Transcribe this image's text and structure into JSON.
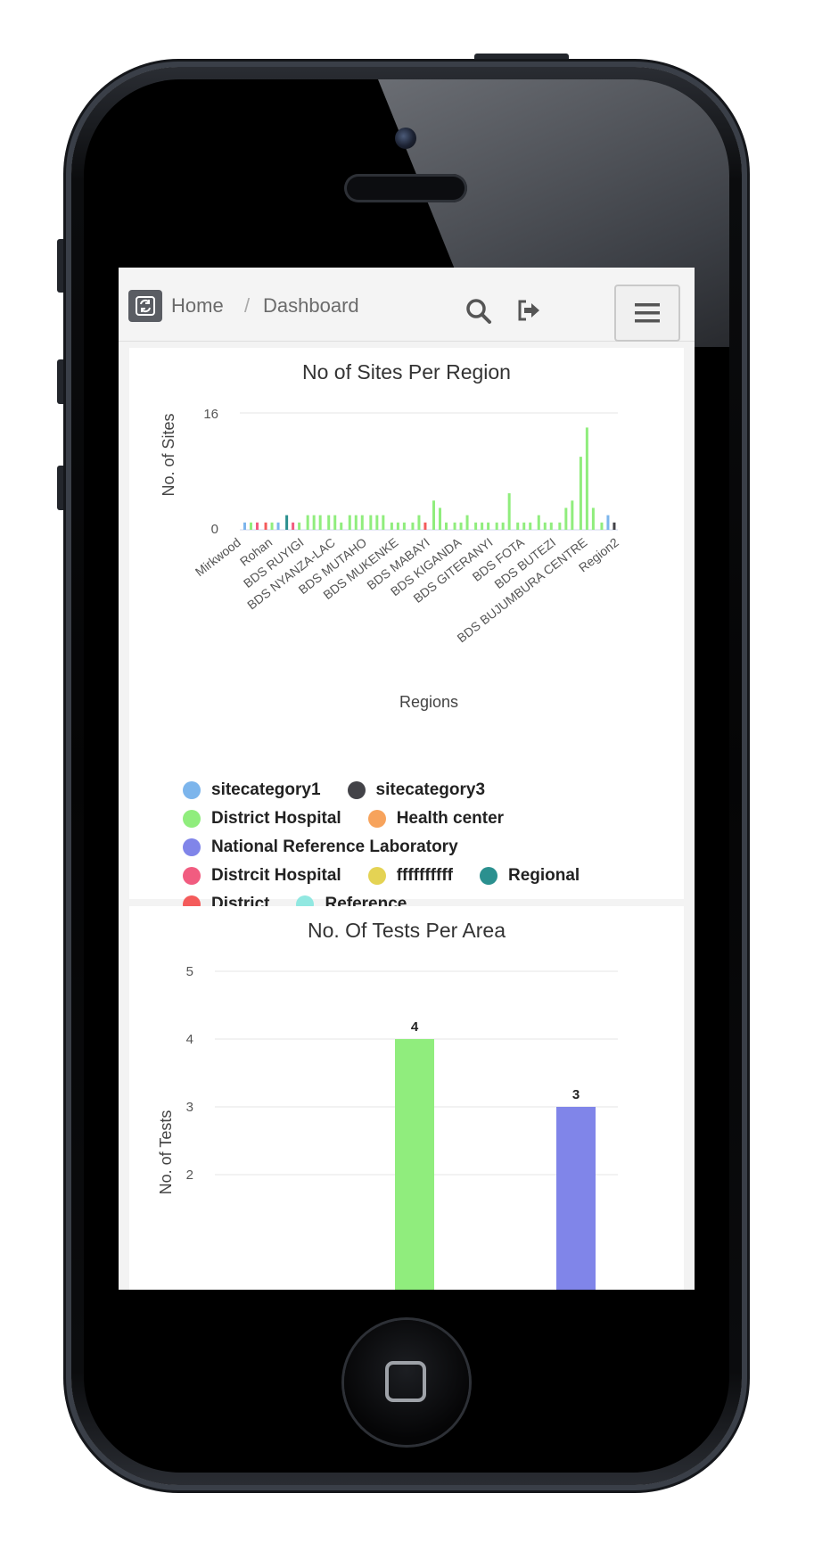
{
  "topbar": {
    "breadcrumb_home": "Home",
    "breadcrumb_sep": "/",
    "breadcrumb_current": "Dashboard"
  },
  "chart1": {
    "title": "No of Sites Per Region",
    "ylabel": "No. of Sites",
    "xlabel": "Regions",
    "y_ticks": [
      "16",
      "0"
    ],
    "x_tick_labels": [
      "Mirkwood",
      "Rohan",
      "BDS RUYIGI",
      "BDS NYANZA-LAC",
      "BDS MUTAHO",
      "BDS MUKENKE",
      "BDS MABAYI",
      "BDS KIGANDA",
      "BDS GITERANYI",
      "BDS FOTA",
      "BDS BUTEZI",
      "BDS BUJUMBURA CENTRE",
      "Region2"
    ],
    "legend": [
      {
        "label": "sitecategory1",
        "color": "#7cb5ec"
      },
      {
        "label": "sitecategory3",
        "color": "#434348"
      },
      {
        "label": "District Hospital",
        "color": "#90ed7d"
      },
      {
        "label": "Health center",
        "color": "#f7a35c"
      },
      {
        "label": "National Reference Laboratory",
        "color": "#8085e9"
      },
      {
        "label": "Distrcit Hospital",
        "color": "#f15c80"
      },
      {
        "label": "ffffffffff",
        "color": "#e4d354"
      },
      {
        "label": "Regional",
        "color": "#2b908f"
      },
      {
        "label": "District",
        "color": "#f45b5b"
      },
      {
        "label": "Reference",
        "color": "#91e8e1"
      }
    ]
  },
  "chart_data": [
    {
      "type": "bar",
      "title": "No of Sites Per Region",
      "xlabel": "Regions",
      "ylabel": "No. of Sites",
      "ylim": [
        0,
        16
      ],
      "stacked": true,
      "categories": [
        "Mirkwood",
        "",
        "Rohan",
        "",
        "BDS RUYIGI",
        "",
        "BDS NYANZA-LAC",
        "",
        "BDS MUTAHO",
        "",
        "BDS MUKENKE",
        "",
        "BDS MABAYI",
        "",
        "BDS KIGANDA",
        "",
        "BDS GITERANYI",
        "",
        "BDS FOTA",
        "",
        "BDS BUTEZI",
        "",
        "BDS BUJUMBURA CENTRE",
        "",
        "Region2"
      ],
      "bars": [
        {
          "slots": [
            {
              "series": "sitecategory1",
              "value": 1
            },
            {
              "series": "District Hospital",
              "value": 1
            },
            {
              "series": "Distrcit Hospital",
              "value": 1
            }
          ]
        },
        {
          "slots": [
            {
              "series": "District",
              "value": 1
            },
            {
              "series": "District Hospital",
              "value": 1
            },
            {
              "series": "sitecategory1",
              "value": 1
            }
          ]
        },
        {
          "slots": [
            {
              "series": "Regional",
              "value": 2
            },
            {
              "series": "Distrcit Hospital",
              "value": 1
            },
            {
              "series": "District Hospital",
              "value": 1
            }
          ]
        },
        {
          "slots": [
            {
              "series": "District Hospital",
              "value": 2
            },
            {
              "series": "District Hospital",
              "value": 2
            },
            {
              "series": "District Hospital",
              "value": 2
            }
          ]
        },
        {
          "slots": [
            {
              "series": "District Hospital",
              "value": 2
            },
            {
              "series": "District Hospital",
              "value": 2
            },
            {
              "series": "District Hospital",
              "value": 1
            }
          ]
        },
        {
          "slots": [
            {
              "series": "District Hospital",
              "value": 2
            },
            {
              "series": "District Hospital",
              "value": 2
            },
            {
              "series": "District Hospital",
              "value": 2
            }
          ]
        },
        {
          "slots": [
            {
              "series": "District Hospital",
              "value": 2
            },
            {
              "series": "District Hospital",
              "value": 2
            },
            {
              "series": "District Hospital",
              "value": 2
            }
          ]
        },
        {
          "slots": [
            {
              "series": "District Hospital",
              "value": 1
            },
            {
              "series": "District Hospital",
              "value": 1
            },
            {
              "series": "District Hospital",
              "value": 1
            }
          ]
        },
        {
          "slots": [
            {
              "series": "District Hospital",
              "value": 1
            },
            {
              "series": "District Hospital",
              "value": 2
            },
            {
              "series": "District",
              "value": 1
            }
          ]
        },
        {
          "slots": [
            {
              "series": "District Hospital",
              "value": 4
            },
            {
              "series": "District Hospital",
              "value": 3
            },
            {
              "series": "District Hospital",
              "value": 1
            }
          ]
        },
        {
          "slots": [
            {
              "series": "District Hospital",
              "value": 1
            },
            {
              "series": "District Hospital",
              "value": 1
            },
            {
              "series": "District Hospital",
              "value": 2
            }
          ]
        },
        {
          "slots": [
            {
              "series": "District Hospital",
              "value": 1
            },
            {
              "series": "District Hospital",
              "value": 1
            },
            {
              "series": "District Hospital",
              "value": 1
            }
          ]
        },
        {
          "slots": [
            {
              "series": "District Hospital",
              "value": 1
            },
            {
              "series": "District Hospital",
              "value": 1
            },
            {
              "series": "District Hospital",
              "value": 5
            }
          ]
        },
        {
          "slots": [
            {
              "series": "District Hospital",
              "value": 1
            },
            {
              "series": "District Hospital",
              "value": 1
            },
            {
              "series": "District Hospital",
              "value": 1
            }
          ]
        },
        {
          "slots": [
            {
              "series": "District Hospital",
              "value": 2
            },
            {
              "series": "District Hospital",
              "value": 1
            },
            {
              "series": "District Hospital",
              "value": 1
            }
          ]
        },
        {
          "slots": [
            {
              "series": "District Hospital",
              "value": 1
            },
            {
              "series": "District Hospital",
              "value": 3
            },
            {
              "series": "District Hospital",
              "value": 4
            }
          ]
        },
        {
          "slots": [
            {
              "series": "District Hospital",
              "value": 10
            },
            {
              "series": "District Hospital",
              "value": 14
            },
            {
              "series": "District Hospital",
              "value": 3
            }
          ]
        },
        {
          "slots": [
            {
              "series": "District Hospital",
              "value": 1
            },
            {
              "series": "sitecategory1",
              "value": 2
            },
            {
              "series": "sitecategory3",
              "value": 1
            }
          ]
        }
      ]
    },
    {
      "type": "bar",
      "title": "No. Of Tests Per Area",
      "ylabel": "No. of Tests",
      "ylim": [
        0,
        5
      ],
      "y_ticks": [
        2,
        3,
        4,
        5
      ],
      "series": [
        {
          "value": 4,
          "color": "#90ed7d"
        },
        {
          "value": 3,
          "color": "#8085e9"
        }
      ]
    }
  ],
  "chart2": {
    "title": "No. Of Tests Per Area",
    "ylabel": "No. of Tests",
    "y_ticks": [
      "5",
      "4",
      "3",
      "2"
    ],
    "data_labels": [
      "4",
      "3"
    ]
  }
}
